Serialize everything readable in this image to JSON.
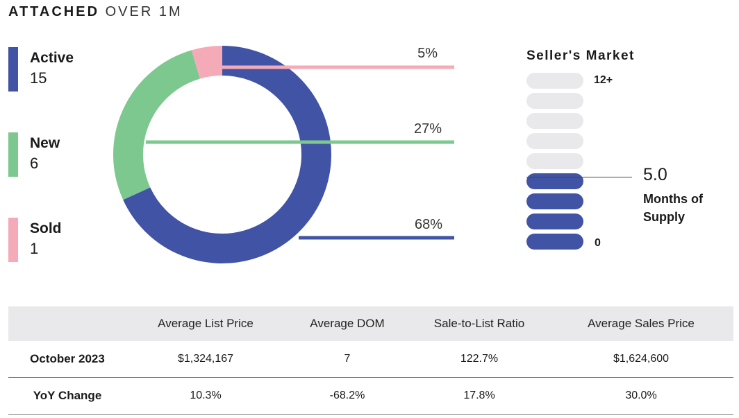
{
  "title": {
    "bold": "ATTACHED",
    "light": "OVER 1M"
  },
  "colors": {
    "active": "#4153a5",
    "new": "#7dc88f",
    "sold": "#f5aab8",
    "inactive": "#e9e9eb"
  },
  "legend": [
    {
      "label": "Active",
      "value": "15"
    },
    {
      "label": "New",
      "value": "6"
    },
    {
      "label": "Sold",
      "value": "1"
    }
  ],
  "chart_data": {
    "type": "pie",
    "style": "donut",
    "categories": [
      "Active",
      "New",
      "Sold"
    ],
    "values": [
      15,
      6,
      1
    ],
    "percent_labels": [
      "68%",
      "27%",
      "5%"
    ],
    "title": "ATTACHED OVER 1M"
  },
  "sellers_market": {
    "title": "Seller's Market",
    "top_label": "12+",
    "bottom_label": "0",
    "total_levels": 9,
    "filled_levels": 4,
    "value": "5.0",
    "caption": "Months of Supply"
  },
  "table": {
    "headers": [
      "",
      "Average List Price",
      "Average DOM",
      "Sale-to-List Ratio",
      "Average Sales Price"
    ],
    "rows": [
      [
        "October 2023",
        "$1,324,167",
        "7",
        "122.7%",
        "$1,624,600"
      ],
      [
        "YoY Change",
        "10.3%",
        "-68.2%",
        "17.8%",
        "30.0%"
      ]
    ]
  }
}
